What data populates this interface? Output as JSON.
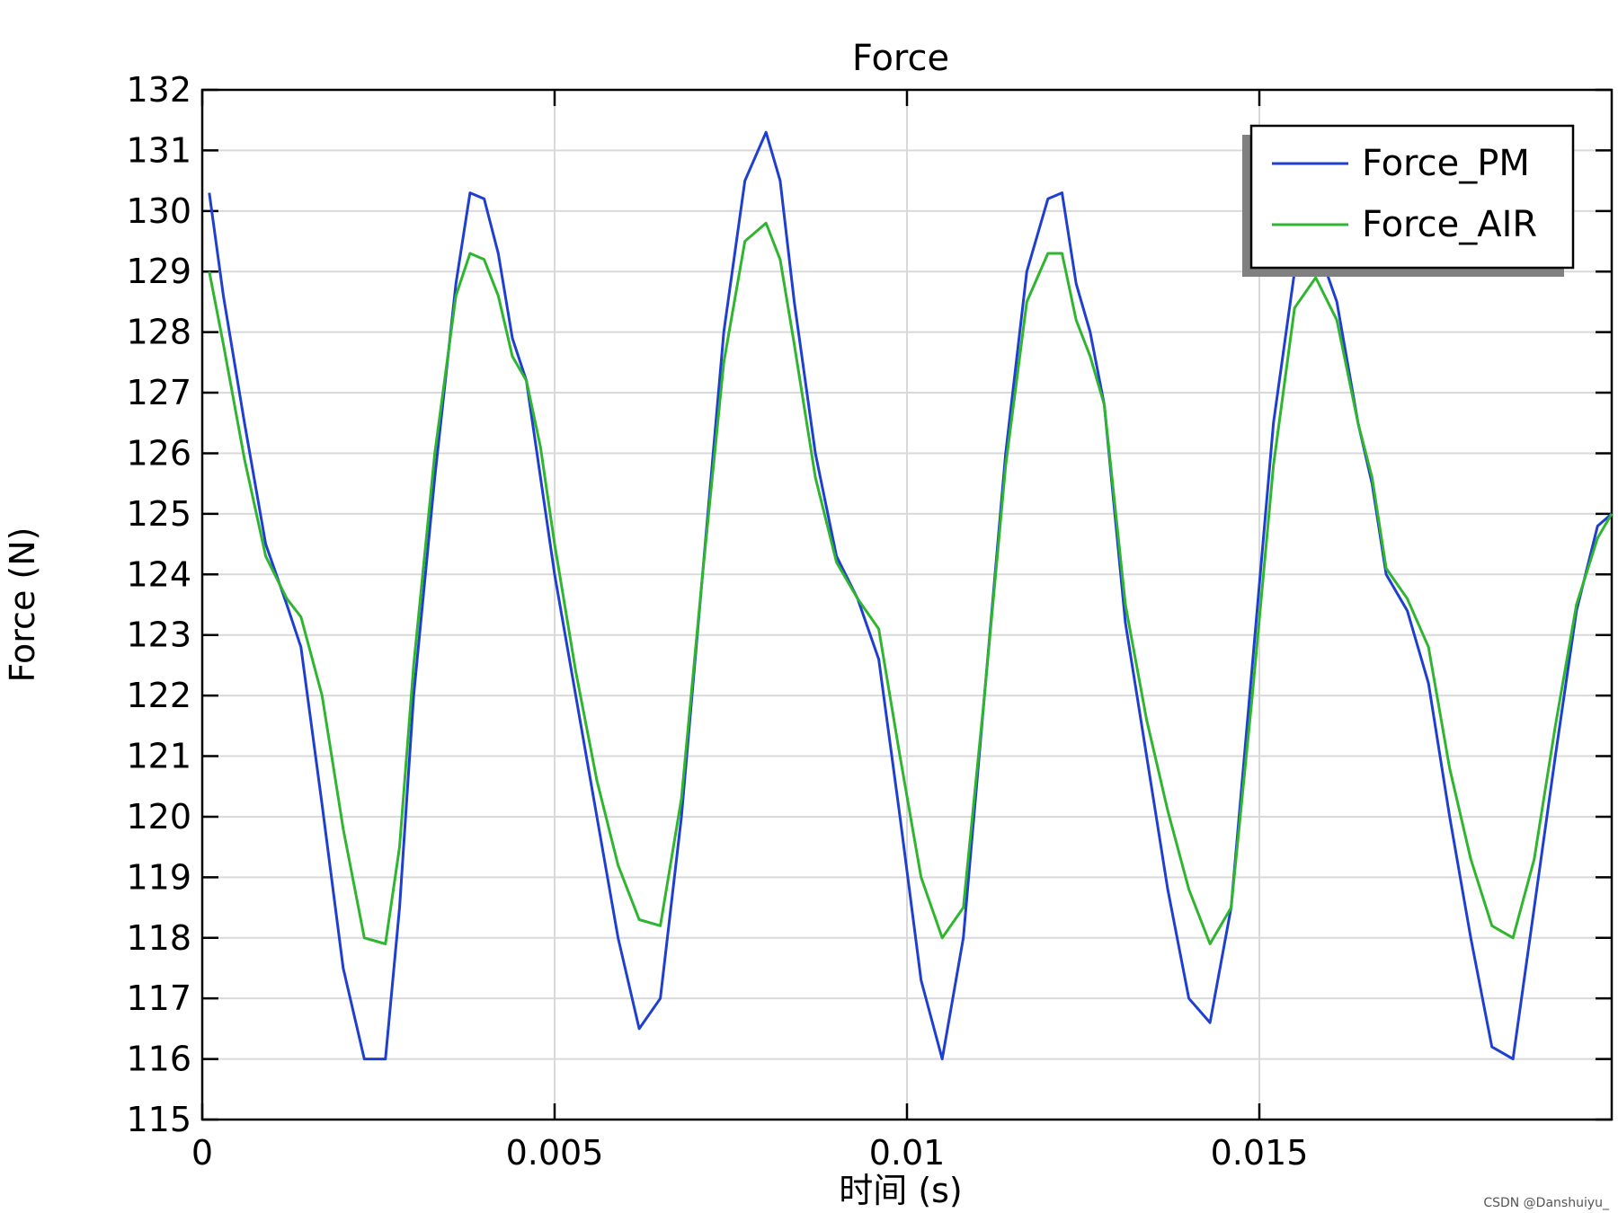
{
  "chart_data": {
    "type": "line",
    "title": "Force",
    "xlabel": "时间 (s)",
    "ylabel": "Force (N)",
    "xlim": [
      0,
      0.02
    ],
    "ylim": [
      115,
      132
    ],
    "x_ticks": [
      0,
      0.005,
      0.01,
      0.015
    ],
    "x_tick_labels": [
      "0",
      "0.005",
      "0.01",
      "0.015"
    ],
    "y_ticks": [
      115,
      116,
      117,
      118,
      119,
      120,
      121,
      122,
      123,
      124,
      125,
      126,
      127,
      128,
      129,
      130,
      131,
      132
    ],
    "y_tick_labels": [
      "115",
      "116",
      "117",
      "118",
      "119",
      "120",
      "121",
      "122",
      "123",
      "124",
      "125",
      "126",
      "127",
      "128",
      "129",
      "130",
      "131",
      "132"
    ],
    "grid": true,
    "legend_position": "top-right",
    "series": [
      {
        "name": "Force_PM",
        "color": "#1f3fd1",
        "x": [
          0.0001,
          0.0003,
          0.0006,
          0.0009,
          0.0012,
          0.0014,
          0.0017,
          0.002,
          0.0023,
          0.0026,
          0.0028,
          0.003,
          0.0033,
          0.0036,
          0.0038,
          0.004,
          0.0042,
          0.0044,
          0.0046,
          0.0048,
          0.005,
          0.0053,
          0.0056,
          0.0059,
          0.0062,
          0.0065,
          0.0068,
          0.0071,
          0.0074,
          0.0077,
          0.008,
          0.0082,
          0.0084,
          0.0087,
          0.009,
          0.0093,
          0.0096,
          0.0099,
          0.0102,
          0.0105,
          0.0108,
          0.0111,
          0.0114,
          0.0117,
          0.012,
          0.0122,
          0.0124,
          0.0126,
          0.0128,
          0.0131,
          0.0134,
          0.0137,
          0.014,
          0.0143,
          0.0146,
          0.0149,
          0.0152,
          0.0155,
          0.0158,
          0.0161,
          0.0164,
          0.0166,
          0.0168,
          0.0171,
          0.0174,
          0.0177,
          0.018,
          0.0183,
          0.0186,
          0.0189,
          0.0192,
          0.0195,
          0.0198,
          0.02
        ],
        "y": [
          130.3,
          128.6,
          126.5,
          124.5,
          123.5,
          122.8,
          120.2,
          117.5,
          116.0,
          116.0,
          118.5,
          122.0,
          125.6,
          128.8,
          130.3,
          130.2,
          129.3,
          127.9,
          127.2,
          125.6,
          124.0,
          122.0,
          120.0,
          118.0,
          116.5,
          117.0,
          120.0,
          124.0,
          128.0,
          130.5,
          131.3,
          130.5,
          128.5,
          126.0,
          124.3,
          123.6,
          122.6,
          120.0,
          117.3,
          116.0,
          118.0,
          122.0,
          126.0,
          129.0,
          130.2,
          130.3,
          128.8,
          128.0,
          126.8,
          123.2,
          121.0,
          118.8,
          117.0,
          116.6,
          118.5,
          122.5,
          126.5,
          129.0,
          129.5,
          128.5,
          126.5,
          125.5,
          124.0,
          123.4,
          122.2,
          120.0,
          118.0,
          116.2,
          116.0,
          118.5,
          121.0,
          123.4,
          124.8,
          125.0
        ]
      },
      {
        "name": "Force_AIR",
        "color": "#2fb52f",
        "x": [
          0.0001,
          0.0003,
          0.0006,
          0.0009,
          0.0012,
          0.0014,
          0.0017,
          0.002,
          0.0023,
          0.0026,
          0.0028,
          0.003,
          0.0033,
          0.0036,
          0.0038,
          0.004,
          0.0042,
          0.0044,
          0.0046,
          0.0048,
          0.005,
          0.0053,
          0.0056,
          0.0059,
          0.0062,
          0.0065,
          0.0068,
          0.0071,
          0.0074,
          0.0077,
          0.008,
          0.0082,
          0.0084,
          0.0087,
          0.009,
          0.0093,
          0.0096,
          0.0099,
          0.0102,
          0.0105,
          0.0108,
          0.0111,
          0.0114,
          0.0117,
          0.012,
          0.0122,
          0.0124,
          0.0126,
          0.0128,
          0.0131,
          0.0134,
          0.0137,
          0.014,
          0.0143,
          0.0146,
          0.0149,
          0.0152,
          0.0155,
          0.0158,
          0.0161,
          0.0164,
          0.0166,
          0.0168,
          0.0171,
          0.0174,
          0.0177,
          0.018,
          0.0183,
          0.0186,
          0.0189,
          0.0192,
          0.0195,
          0.0198,
          0.02
        ],
        "y": [
          129.0,
          127.8,
          125.9,
          124.3,
          123.6,
          123.3,
          122.0,
          119.8,
          118.0,
          117.9,
          119.5,
          122.5,
          126.0,
          128.6,
          129.3,
          129.2,
          128.6,
          127.6,
          127.2,
          126.1,
          124.5,
          122.4,
          120.6,
          119.2,
          118.3,
          118.2,
          120.3,
          124.0,
          127.5,
          129.5,
          129.8,
          129.2,
          127.8,
          125.6,
          124.2,
          123.6,
          123.1,
          121.0,
          119.0,
          118.0,
          118.5,
          122.0,
          125.8,
          128.5,
          129.3,
          129.3,
          128.2,
          127.6,
          126.8,
          123.5,
          121.6,
          120.1,
          118.8,
          117.9,
          118.5,
          122.0,
          125.8,
          128.4,
          128.9,
          128.2,
          126.5,
          125.6,
          124.1,
          123.6,
          122.8,
          120.8,
          119.3,
          118.2,
          118.0,
          119.3,
          121.5,
          123.5,
          124.6,
          125.0
        ]
      }
    ]
  },
  "watermark": "CSDN @Danshuiyu_"
}
